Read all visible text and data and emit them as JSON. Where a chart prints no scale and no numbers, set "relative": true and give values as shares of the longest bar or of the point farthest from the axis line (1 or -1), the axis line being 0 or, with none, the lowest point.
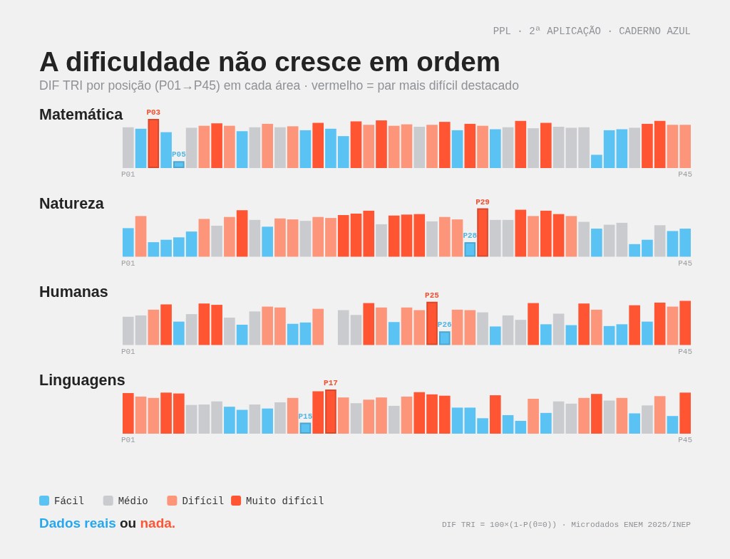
{
  "chart_data": [
    {
      "type": "other",
      "title": "A dificuldade não cresce em ordem",
      "subtitle": "DIF TRI por posição (P01→P45) em cada área · vermelho = par mais difícil destacado",
      "annotations": [
        "PPL · 2ª APLICAÇÃO · CADERNO AZUL"
      ]
    },
    {
      "type": "bar",
      "title": "Matemática",
      "relative": true,
      "stacked": true,
      "categories": [
        "P01",
        null,
        null,
        null,
        null,
        null,
        null,
        null,
        null,
        null,
        null,
        null,
        null,
        null,
        null,
        null,
        null,
        null,
        null,
        null,
        null,
        null,
        null,
        null,
        null,
        null,
        null,
        null,
        null,
        null,
        null,
        null,
        null,
        null,
        null,
        null,
        null,
        null,
        null,
        null,
        null,
        null,
        null,
        null,
        "P45"
      ],
      "series": [
        {
          "color": "#5bc3f3",
          "values": [
            null,
            0.8,
            null,
            0.73,
            null,
            null,
            null,
            null,
            null,
            0.75,
            null,
            null,
            null,
            null,
            0.77,
            null,
            0.8,
            0.65,
            null,
            null,
            null,
            null,
            null,
            null,
            null,
            null,
            0.77,
            null,
            null,
            0.79,
            null,
            null,
            null,
            null,
            null,
            null,
            null,
            0.27,
            0.77,
            0.79,
            null,
            null,
            null,
            null,
            null
          ]
        },
        {
          "color": "#c9cbce",
          "values": [
            0.83,
            null,
            null,
            null,
            null,
            0.82,
            null,
            null,
            null,
            null,
            0.83,
            null,
            0.83,
            null,
            null,
            null,
            null,
            null,
            null,
            null,
            null,
            null,
            null,
            0.84,
            null,
            null,
            null,
            null,
            null,
            null,
            0.83,
            null,
            0.81,
            null,
            0.84,
            0.82,
            0.83,
            null,
            null,
            null,
            0.82,
            null,
            null,
            null,
            null
          ]
        },
        {
          "color": "#fc9579",
          "values": [
            null,
            null,
            null,
            null,
            null,
            null,
            0.86,
            null,
            0.86,
            null,
            null,
            0.9,
            null,
            0.85,
            null,
            null,
            null,
            null,
            null,
            0.88,
            null,
            0.86,
            0.89,
            null,
            0.88,
            null,
            null,
            null,
            0.86,
            null,
            null,
            null,
            null,
            null,
            null,
            null,
            null,
            null,
            null,
            null,
            null,
            null,
            null,
            0.88,
            0.88
          ]
        },
        {
          "color": "#ff5533",
          "values": [
            null,
            null,
            null,
            null,
            null,
            null,
            null,
            0.91,
            null,
            null,
            null,
            null,
            null,
            null,
            null,
            0.92,
            null,
            null,
            0.95,
            null,
            0.97,
            null,
            null,
            null,
            null,
            0.94,
            null,
            0.9,
            null,
            null,
            null,
            0.96,
            null,
            0.92,
            null,
            null,
            null,
            null,
            null,
            null,
            null,
            0.9,
            0.96,
            null,
            null
          ]
        },
        {
          "name": "P03",
          "color": "#ff5533",
          "values": [
            null,
            null,
            1.0,
            null,
            null,
            null,
            null,
            null,
            null,
            null,
            null,
            null,
            null,
            null,
            null,
            null,
            null,
            null,
            null,
            null,
            null,
            null,
            null,
            null,
            null,
            null,
            null,
            null,
            null,
            null,
            null,
            null,
            null,
            null,
            null,
            null,
            null,
            null,
            null,
            null,
            null,
            null,
            null,
            null,
            null
          ]
        },
        {
          "name": "P05",
          "color": "#5bc3f3",
          "values": [
            null,
            null,
            null,
            null,
            0.14,
            null,
            null,
            null,
            null,
            null,
            null,
            null,
            null,
            null,
            null,
            null,
            null,
            null,
            null,
            null,
            null,
            null,
            null,
            null,
            null,
            null,
            null,
            null,
            null,
            null,
            null,
            null,
            null,
            null,
            null,
            null,
            null,
            null,
            null,
            null,
            null,
            null,
            null,
            null,
            null
          ]
        }
      ]
    },
    {
      "type": "bar",
      "title": "Natureza",
      "relative": true,
      "stacked": true,
      "categories": [
        "P01",
        null,
        null,
        null,
        null,
        null,
        null,
        null,
        null,
        null,
        null,
        null,
        null,
        null,
        null,
        null,
        null,
        null,
        null,
        null,
        null,
        null,
        null,
        null,
        null,
        null,
        null,
        null,
        null,
        null,
        null,
        null,
        null,
        null,
        null,
        null,
        null,
        null,
        null,
        null,
        null,
        null,
        null,
        null,
        "P45"
      ],
      "series": [
        {
          "color": "#5bc3f3",
          "values": [
            0.59,
            null,
            0.3,
            0.35,
            0.4,
            0.52,
            null,
            null,
            null,
            null,
            null,
            0.62,
            null,
            null,
            null,
            null,
            null,
            null,
            null,
            null,
            null,
            null,
            null,
            null,
            null,
            null,
            null,
            null,
            null,
            null,
            null,
            null,
            null,
            null,
            null,
            null,
            null,
            0.58,
            null,
            null,
            0.26,
            0.35,
            null,
            0.53,
            0.58
          ]
        },
        {
          "color": "#c9cbce",
          "values": [
            null,
            null,
            null,
            null,
            null,
            null,
            null,
            0.64,
            null,
            null,
            0.76,
            null,
            null,
            null,
            0.74,
            null,
            null,
            null,
            null,
            null,
            0.67,
            null,
            null,
            null,
            0.73,
            null,
            null,
            null,
            null,
            0.76,
            0.76,
            null,
            null,
            null,
            null,
            null,
            0.72,
            null,
            0.66,
            0.7,
            null,
            null,
            0.65,
            null,
            null
          ]
        },
        {
          "color": "#fc9579",
          "values": [
            null,
            0.84,
            null,
            null,
            null,
            null,
            0.78,
            null,
            0.82,
            null,
            null,
            null,
            0.79,
            0.77,
            null,
            0.82,
            0.8,
            null,
            null,
            null,
            null,
            null,
            null,
            null,
            null,
            0.82,
            0.77,
            null,
            null,
            null,
            null,
            null,
            0.84,
            null,
            null,
            0.84,
            null,
            null,
            null,
            null,
            null,
            null,
            null,
            null,
            null
          ]
        },
        {
          "color": "#ff5533",
          "values": [
            null,
            null,
            null,
            null,
            null,
            null,
            null,
            null,
            null,
            0.96,
            null,
            null,
            null,
            null,
            null,
            null,
            null,
            0.86,
            0.89,
            0.95,
            null,
            0.85,
            0.87,
            0.88,
            null,
            null,
            null,
            null,
            null,
            null,
            null,
            0.97,
            null,
            0.95,
            0.88,
            null,
            null,
            null,
            null,
            null,
            null,
            null,
            null,
            null,
            null
          ]
        },
        {
          "name": "P28",
          "color": "#5bc3f3",
          "values": [
            null,
            null,
            null,
            null,
            null,
            null,
            null,
            null,
            null,
            null,
            null,
            null,
            null,
            null,
            null,
            null,
            null,
            null,
            null,
            null,
            null,
            null,
            null,
            null,
            null,
            null,
            null,
            0.3,
            null,
            null,
            null,
            null,
            null,
            null,
            null,
            null,
            null,
            null,
            null,
            null,
            null,
            null,
            null,
            null,
            null
          ]
        },
        {
          "name": "P29",
          "color": "#ff5533",
          "values": [
            null,
            null,
            null,
            null,
            null,
            null,
            null,
            null,
            null,
            null,
            null,
            null,
            null,
            null,
            null,
            null,
            null,
            null,
            null,
            null,
            null,
            null,
            null,
            null,
            null,
            null,
            null,
            null,
            1.0,
            null,
            null,
            null,
            null,
            null,
            null,
            null,
            null,
            null,
            null,
            null,
            null,
            null,
            null,
            null,
            null
          ]
        }
      ]
    },
    {
      "type": "bar",
      "title": "Humanas",
      "relative": true,
      "stacked": true,
      "categories": [
        "P01",
        null,
        null,
        null,
        null,
        null,
        null,
        null,
        null,
        null,
        null,
        null,
        null,
        null,
        null,
        null,
        null,
        null,
        null,
        null,
        null,
        null,
        null,
        null,
        null,
        null,
        null,
        null,
        null,
        null,
        null,
        null,
        null,
        null,
        null,
        null,
        null,
        null,
        null,
        null,
        null,
        null,
        null,
        null,
        "P45"
      ],
      "series": [
        {
          "color": "#5bc3f3",
          "values": [
            null,
            null,
            null,
            null,
            0.53,
            null,
            null,
            null,
            null,
            0.46,
            null,
            null,
            null,
            0.48,
            0.51,
            null,
            null,
            null,
            null,
            null,
            null,
            0.52,
            null,
            null,
            null,
            null,
            null,
            null,
            null,
            0.42,
            null,
            null,
            null,
            0.47,
            null,
            0.45,
            null,
            null,
            0.43,
            0.47,
            null,
            0.53,
            null,
            null,
            null
          ]
        },
        {
          "color": "#c9cbce",
          "values": [
            0.64,
            0.67,
            null,
            null,
            null,
            0.7,
            null,
            null,
            0.62,
            null,
            0.76,
            null,
            null,
            null,
            null,
            null,
            null,
            0.79,
            0.68,
            null,
            null,
            null,
            null,
            null,
            null,
            null,
            null,
            null,
            0.74,
            null,
            0.67,
            0.57,
            null,
            null,
            0.71,
            null,
            null,
            null,
            null,
            null,
            null,
            null,
            null,
            null,
            null
          ]
        },
        {
          "color": "#fc9579",
          "values": [
            null,
            null,
            0.8,
            null,
            null,
            null,
            null,
            null,
            null,
            null,
            null,
            0.87,
            0.85,
            null,
            null,
            0.82,
            null,
            null,
            null,
            null,
            0.85,
            null,
            0.85,
            0.79,
            null,
            null,
            0.8,
            0.79,
            null,
            null,
            null,
            null,
            null,
            null,
            null,
            null,
            null,
            0.8,
            null,
            null,
            null,
            null,
            null,
            0.87,
            null
          ]
        },
        {
          "color": "#ff5533",
          "values": [
            null,
            null,
            null,
            0.92,
            null,
            null,
            0.94,
            0.91,
            null,
            null,
            null,
            null,
            null,
            null,
            null,
            null,
            null,
            null,
            null,
            0.95,
            null,
            null,
            null,
            null,
            null,
            null,
            null,
            null,
            null,
            null,
            null,
            null,
            0.95,
            null,
            null,
            null,
            0.94,
            null,
            null,
            null,
            0.9,
            null,
            0.96,
            null,
            1.0
          ]
        },
        {
          "name": "P25",
          "color": "#ff5533",
          "values": [
            null,
            null,
            null,
            null,
            null,
            null,
            null,
            null,
            null,
            null,
            null,
            null,
            null,
            null,
            null,
            null,
            null,
            null,
            null,
            null,
            null,
            null,
            null,
            null,
            0.98,
            null,
            null,
            null,
            null,
            null,
            null,
            null,
            null,
            null,
            null,
            null,
            null,
            null,
            null,
            null,
            null,
            null,
            null,
            null,
            null
          ]
        },
        {
          "name": "P26",
          "color": "#5bc3f3",
          "values": [
            null,
            null,
            null,
            null,
            null,
            null,
            null,
            null,
            null,
            null,
            null,
            null,
            null,
            null,
            null,
            null,
            null,
            null,
            null,
            null,
            null,
            null,
            null,
            null,
            null,
            0.31,
            null,
            null,
            null,
            null,
            null,
            null,
            null,
            null,
            null,
            null,
            null,
            null,
            null,
            null,
            null,
            null,
            null,
            null,
            null
          ]
        }
      ]
    },
    {
      "type": "bar",
      "title": "Linguagens",
      "relative": true,
      "stacked": true,
      "legend": "bottom",
      "categories": [
        "P01",
        null,
        null,
        null,
        null,
        null,
        null,
        null,
        null,
        null,
        null,
        null,
        null,
        null,
        null,
        null,
        null,
        null,
        null,
        null,
        null,
        null,
        null,
        null,
        null,
        null,
        null,
        null,
        null,
        null,
        null,
        null,
        null,
        null,
        null,
        null,
        null,
        null,
        null,
        null,
        null,
        null,
        null,
        null,
        "P45"
      ],
      "series": [
        {
          "name": "Fácil",
          "color": "#5bc3f3",
          "values": [
            null,
            null,
            null,
            null,
            null,
            null,
            null,
            null,
            0.61,
            0.54,
            null,
            0.57,
            null,
            null,
            null,
            null,
            null,
            null,
            null,
            null,
            null,
            null,
            null,
            null,
            null,
            null,
            0.59,
            0.59,
            0.35,
            null,
            0.42,
            0.29,
            null,
            0.47,
            null,
            null,
            null,
            null,
            null,
            null,
            0.46,
            null,
            null,
            0.4,
            null
          ]
        },
        {
          "name": "Médio",
          "color": "#c9cbce",
          "values": [
            null,
            null,
            null,
            null,
            null,
            0.65,
            0.66,
            0.73,
            null,
            null,
            0.66,
            null,
            0.71,
            null,
            null,
            null,
            null,
            null,
            0.69,
            null,
            null,
            0.63,
            null,
            null,
            null,
            null,
            null,
            null,
            null,
            null,
            null,
            null,
            null,
            null,
            0.73,
            0.68,
            null,
            null,
            0.75,
            null,
            null,
            0.64,
            null,
            null,
            null
          ]
        },
        {
          "name": "Difícil",
          "color": "#fc9579",
          "values": [
            null,
            0.84,
            0.81,
            null,
            null,
            null,
            null,
            null,
            null,
            null,
            null,
            null,
            null,
            0.81,
            null,
            null,
            null,
            0.82,
            null,
            0.77,
            0.82,
            null,
            0.84,
            null,
            null,
            null,
            null,
            null,
            null,
            null,
            null,
            null,
            0.79,
            null,
            null,
            null,
            0.81,
            null,
            null,
            0.81,
            null,
            null,
            0.85,
            null,
            null
          ]
        },
        {
          "name": "Muito difícil",
          "color": "#ff5533",
          "values": [
            0.92,
            null,
            null,
            0.93,
            0.91,
            null,
            null,
            null,
            null,
            null,
            null,
            null,
            null,
            null,
            null,
            0.96,
            null,
            null,
            null,
            null,
            null,
            null,
            null,
            0.94,
            0.89,
            0.86,
            null,
            null,
            null,
            0.87,
            null,
            null,
            null,
            null,
            null,
            null,
            null,
            0.9,
            null,
            null,
            null,
            null,
            null,
            null,
            0.93
          ]
        },
        {
          "name": "P15",
          "color": "#5bc3f3",
          "values": [
            null,
            null,
            null,
            null,
            null,
            null,
            null,
            null,
            null,
            null,
            null,
            null,
            null,
            null,
            0.25,
            null,
            null,
            null,
            null,
            null,
            null,
            null,
            null,
            null,
            null,
            null,
            null,
            null,
            null,
            null,
            null,
            null,
            null,
            null,
            null,
            null,
            null,
            null,
            null,
            null,
            null,
            null,
            null,
            null,
            null
          ]
        },
        {
          "name": "P17",
          "color": "#ff5533",
          "values": [
            null,
            null,
            null,
            null,
            null,
            null,
            null,
            null,
            null,
            null,
            null,
            null,
            null,
            null,
            null,
            null,
            1.0,
            null,
            null,
            null,
            null,
            null,
            null,
            null,
            null,
            null,
            null,
            null,
            null,
            null,
            null,
            null,
            null,
            null,
            null,
            null,
            null,
            null,
            null,
            null,
            null,
            null,
            null,
            null,
            null
          ]
        }
      ]
    },
    {
      "type": "other",
      "annotations": [
        "Dados reais ou nada.",
        "DIF TRI = 100×(1-P(θ=0)) · Microdados ENEM 2025/INEP"
      ]
    }
  ]
}
